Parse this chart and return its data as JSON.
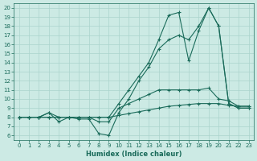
{
  "xlabel": "Humidex (Indice chaleur)",
  "bg_color": "#cceae4",
  "line_color": "#1a6b5a",
  "grid_color": "#aad4cc",
  "xlim": [
    -0.5,
    23.5
  ],
  "ylim": [
    5.5,
    20.5
  ],
  "xticks": [
    0,
    1,
    2,
    3,
    4,
    5,
    6,
    7,
    8,
    9,
    10,
    11,
    12,
    13,
    14,
    15,
    16,
    17,
    18,
    19,
    20,
    21,
    22,
    23
  ],
  "yticks": [
    6,
    7,
    8,
    9,
    10,
    11,
    12,
    13,
    14,
    15,
    16,
    17,
    18,
    19,
    20
  ],
  "line1_x": [
    0,
    1,
    2,
    3,
    4,
    5,
    6,
    7,
    8,
    9,
    10,
    11,
    12,
    13,
    14,
    15,
    16,
    17,
    18,
    19,
    20,
    21,
    22,
    23
  ],
  "line1_y": [
    8,
    8,
    8,
    8,
    8,
    8,
    8,
    8,
    8,
    8,
    8.2,
    8.4,
    8.6,
    8.8,
    9.0,
    9.2,
    9.3,
    9.4,
    9.5,
    9.5,
    9.5,
    9.3,
    9.2,
    9.2
  ],
  "line2_x": [
    0,
    1,
    2,
    3,
    4,
    5,
    6,
    7,
    8,
    9,
    10,
    11,
    12,
    13,
    14,
    15,
    16,
    17,
    18,
    19,
    20,
    21,
    22,
    23
  ],
  "line2_y": [
    8,
    8,
    8,
    8.5,
    8,
    8,
    8,
    8,
    7.5,
    7.5,
    9.0,
    9.5,
    10.0,
    10.5,
    11.0,
    11.0,
    11.0,
    11.0,
    11.0,
    11.2,
    10.0,
    9.8,
    9.2,
    9.2
  ],
  "line3_x": [
    0,
    1,
    2,
    3,
    4,
    5,
    6,
    7,
    8,
    9,
    10,
    11,
    12,
    13,
    14,
    15,
    16,
    17,
    18,
    19,
    20,
    21,
    22,
    23
  ],
  "line3_y": [
    8,
    8,
    8,
    8.5,
    7.5,
    8,
    7.8,
    7.8,
    6.2,
    6.0,
    8.5,
    10.0,
    12.0,
    13.5,
    15.5,
    16.5,
    17.0,
    16.5,
    18.0,
    20.0,
    18.0,
    9.5,
    9.0,
    9.0
  ],
  "line4_x": [
    0,
    1,
    2,
    3,
    4,
    5,
    6,
    7,
    8,
    9,
    10,
    11,
    12,
    13,
    14,
    15,
    16,
    17,
    18,
    19,
    20,
    21,
    22,
    23
  ],
  "line4_y": [
    8,
    8,
    8,
    8,
    8,
    8,
    8,
    8,
    8,
    8,
    9.5,
    11.0,
    12.5,
    14.0,
    16.5,
    19.2,
    19.5,
    14.2,
    17.5,
    20.0,
    18.0,
    9.5,
    9.0,
    9.0
  ]
}
